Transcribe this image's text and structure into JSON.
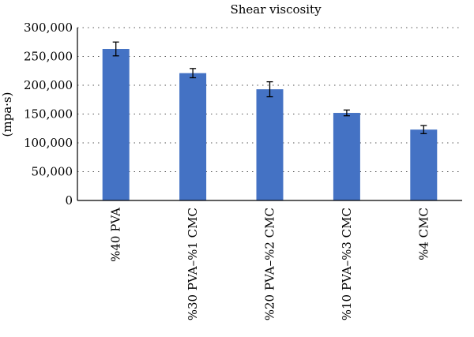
{
  "chart_data": {
    "type": "bar",
    "title": "Shear viscosity",
    "ylabel": "(mpa·s)",
    "xlabel": "",
    "ylim": [
      0,
      300000
    ],
    "yticks": [
      0,
      50000,
      100000,
      150000,
      200000,
      250000,
      300000
    ],
    "ytick_labels": [
      "0",
      "50,000",
      "100,000",
      "150,000",
      "200,000",
      "250,000",
      "300,000"
    ],
    "categories": [
      "%40 PVA",
      "%30 PVA–%1 CMC",
      "%20 PVA–%2 CMC",
      "%10 PVA–%3 CMC",
      "%4 CMC"
    ],
    "values": [
      263000,
      221000,
      193000,
      152000,
      123000
    ],
    "errors": [
      12000,
      8000,
      13000,
      5000,
      7000
    ],
    "bar_color": "#4472C4",
    "grid": "horizontal dotted",
    "legend": "none"
  }
}
